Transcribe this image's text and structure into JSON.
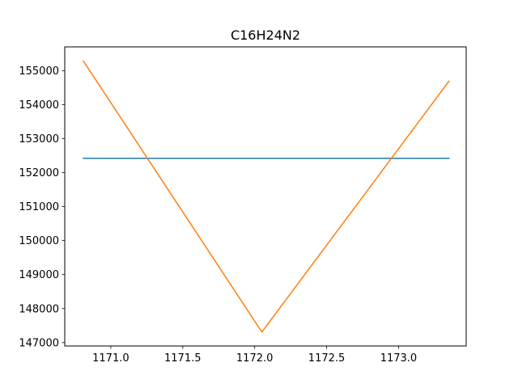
{
  "chart_data": {
    "type": "line",
    "title": "C16H24N2",
    "xlabel": "",
    "ylabel": "",
    "xlim": [
      1170.68,
      1173.47
    ],
    "ylim": [
      146900,
      155700
    ],
    "x_ticks": [
      1171.0,
      1171.5,
      1172.0,
      1172.5,
      1173.0
    ],
    "x_tick_labels": [
      "1171.0",
      "1171.5",
      "1172.0",
      "1172.5",
      "1173.0"
    ],
    "y_ticks": [
      147000,
      148000,
      149000,
      150000,
      151000,
      152000,
      153000,
      154000,
      155000
    ],
    "y_tick_labels": [
      "147000",
      "148000",
      "149000",
      "150000",
      "151000",
      "152000",
      "153000",
      "154000",
      "155000"
    ],
    "grid": false,
    "series": [
      {
        "color": "#1f77b4",
        "points": [
          [
            1170.81,
            152420
          ],
          [
            1173.35,
            152420
          ]
        ]
      },
      {
        "color": "#ff7f0e",
        "points": [
          [
            1170.81,
            155280
          ],
          [
            1172.05,
            147310
          ],
          [
            1173.35,
            154690
          ]
        ]
      }
    ]
  }
}
